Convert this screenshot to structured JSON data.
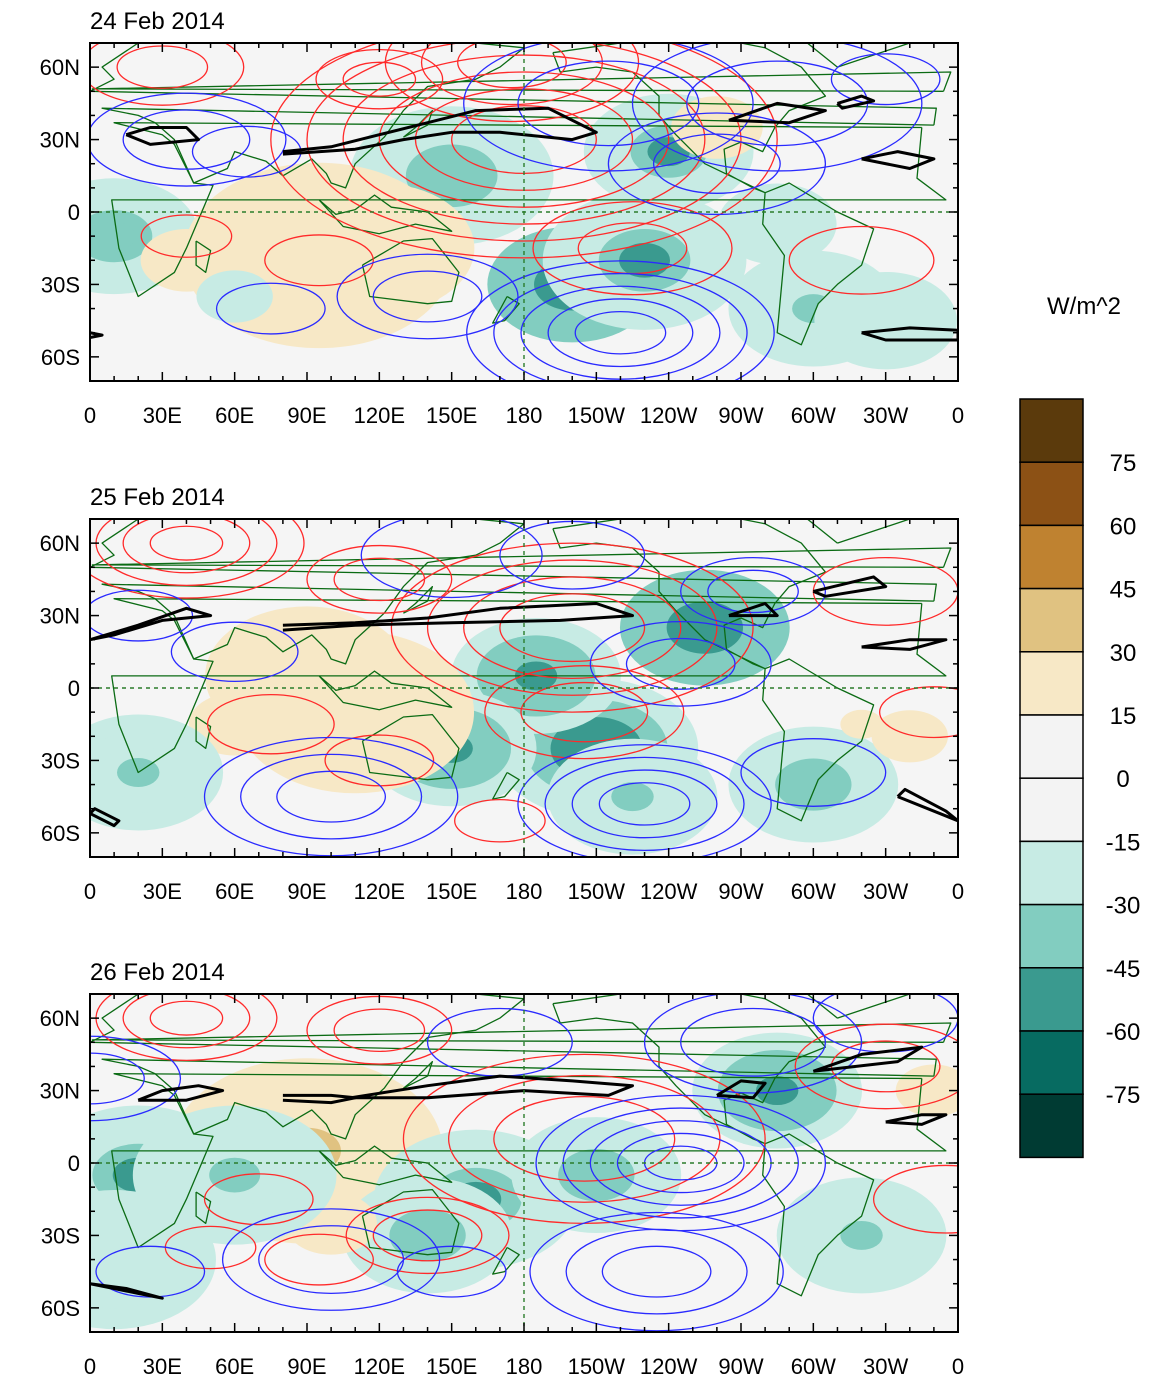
{
  "figure": {
    "panels": [
      {
        "title": "24 Feb 2014"
      },
      {
        "title": "25 Feb 2014"
      },
      {
        "title": "26 Feb 2014"
      }
    ],
    "lat_labels": [
      "60N",
      "30N",
      "0",
      "30S",
      "60S"
    ],
    "lon_labels": [
      "0",
      "30E",
      "60E",
      "90E",
      "120E",
      "150E",
      "180",
      "150W",
      "120W",
      "90W",
      "60W",
      "30W",
      "0"
    ]
  },
  "colorbar": {
    "units": "W/m^2",
    "labels": [
      "75",
      "60",
      "45",
      "30",
      "15",
      "0",
      "-15",
      "-30",
      "-45",
      "-60",
      "-75"
    ],
    "colors": [
      "#5b3a0c",
      "#8c5115",
      "#bf8230",
      "#e0c281",
      "#f7e8c6",
      "#f3f3f3",
      "#f3f3f3",
      "#c7ebe4",
      "#82cdc0",
      "#3a9a8f",
      "#076b61",
      "#003b33"
    ]
  },
  "map_colors": {
    "positive_contour": "#ff2a2a",
    "negative_contour": "#2a2aff",
    "jet_contour": "#000000",
    "coastline": "#0b6b14",
    "reference_line": "#2b7d2b"
  }
}
